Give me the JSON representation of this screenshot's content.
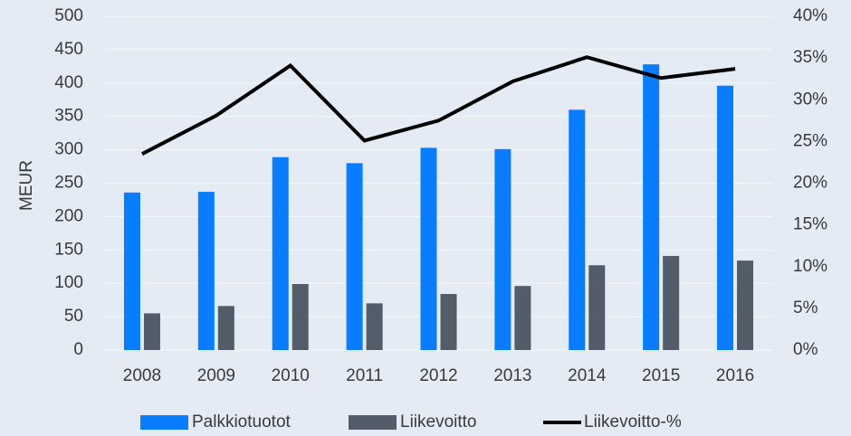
{
  "chart_data": {
    "type": "bar-line",
    "ylabel": "MEUR",
    "categories": [
      "2008",
      "2009",
      "2010",
      "2011",
      "2012",
      "2013",
      "2014",
      "2015",
      "2016"
    ],
    "series": [
      {
        "name": "Palkkiotuotot",
        "color": "#0a7cff",
        "type": "bar",
        "values": [
          236,
          237,
          289,
          280,
          303,
          301,
          360,
          428,
          396
        ]
      },
      {
        "name": "Liikevoitto",
        "color": "#535d6a",
        "type": "bar",
        "values": [
          55,
          66,
          99,
          70,
          84,
          96,
          127,
          141,
          134
        ]
      },
      {
        "name": "Liikevoitto-%",
        "color": "#000000",
        "type": "line",
        "axis": "y2",
        "values": [
          23.5,
          28.1,
          34.1,
          25.1,
          27.5,
          32.2,
          35.1,
          32.6,
          33.7
        ]
      }
    ],
    "ylim": [
      0,
      500
    ],
    "yticks": [
      0,
      50,
      100,
      150,
      200,
      250,
      300,
      350,
      400,
      450,
      500
    ],
    "y2lim": [
      0,
      40
    ],
    "y2ticks": [
      {
        "value": 0,
        "label": "0%"
      },
      {
        "value": 5,
        "label": "5%"
      },
      {
        "value": 10,
        "label": "10%"
      },
      {
        "value": 15,
        "label": "15%"
      },
      {
        "value": 20,
        "label": "20%"
      },
      {
        "value": 25,
        "label": "25%"
      },
      {
        "value": 30,
        "label": "30%"
      },
      {
        "value": 35,
        "label": "35%"
      },
      {
        "value": 40,
        "label": "40%"
      }
    ],
    "grid": true,
    "legend": "bottom"
  }
}
